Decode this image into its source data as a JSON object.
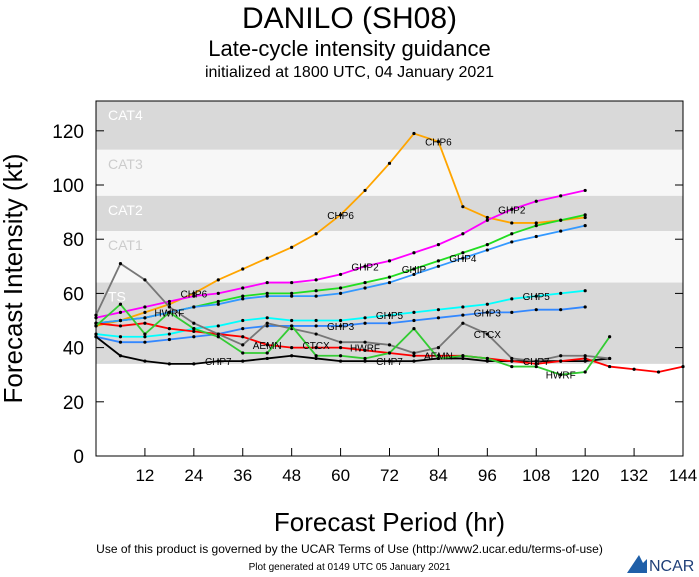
{
  "chart_data": {
    "type": "line",
    "title": "DANILO (SH08)",
    "subtitle": "Late-cycle intensity guidance",
    "initialized": "initialized at 1800 UTC, 04 January 2021",
    "xlabel": "Forecast Period (hr)",
    "ylabel": "Forecast Intensity (kt)",
    "xlim": [
      0,
      144
    ],
    "ylim": [
      0,
      131
    ],
    "xticks": [
      12,
      24,
      36,
      48,
      60,
      72,
      84,
      96,
      108,
      120,
      132,
      144
    ],
    "yticks": [
      0,
      20,
      40,
      60,
      80,
      100,
      120
    ],
    "grid": false,
    "bands": [
      {
        "name": "CAT4",
        "min": 113,
        "max": 131,
        "color": "#d9d9d9"
      },
      {
        "name": "CAT3",
        "min": 96,
        "max": 113,
        "color": "#f7f7f7"
      },
      {
        "name": "CAT2",
        "min": 83,
        "max": 96,
        "color": "#d9d9d9"
      },
      {
        "name": "CAT1",
        "min": 64,
        "max": 83,
        "color": "#f7f7f7"
      },
      {
        "name": "TS",
        "min": 34,
        "max": 64,
        "color": "#d9d9d9"
      }
    ],
    "series": [
      {
        "name": "CHP6",
        "color": "#ffa500",
        "x": [
          0,
          6,
          12,
          18,
          24,
          30,
          36,
          42,
          48,
          54,
          60,
          66,
          72,
          78,
          84,
          90,
          96,
          102,
          108,
          114,
          120
        ],
        "values": [
          48,
          50,
          53,
          56,
          60,
          65,
          69,
          73,
          77,
          82,
          89,
          98,
          108,
          119,
          116,
          92,
          88,
          86,
          86,
          87,
          88
        ]
      },
      {
        "name": "GHP2",
        "color": "#ff00ff",
        "x": [
          0,
          6,
          12,
          18,
          24,
          30,
          36,
          42,
          48,
          54,
          60,
          66,
          72,
          78,
          84,
          90,
          96,
          102,
          108,
          114,
          120
        ],
        "values": [
          51,
          53,
          55,
          57,
          59,
          60,
          62,
          64,
          64,
          65,
          67,
          70,
          72,
          75,
          78,
          82,
          87,
          91,
          94,
          96,
          98
        ]
      },
      {
        "name": "GHIP",
        "color": "#22dd22",
        "x": [
          0,
          6,
          12,
          18,
          24,
          30,
          36,
          42,
          48,
          54,
          60,
          66,
          72,
          78,
          84,
          90,
          96,
          102,
          108,
          114,
          120
        ],
        "values": [
          49,
          50,
          51,
          53,
          55,
          57,
          59,
          60,
          60,
          61,
          62,
          64,
          66,
          69,
          72,
          75,
          78,
          82,
          85,
          87,
          89
        ]
      },
      {
        "name": "GHP4",
        "color": "#3399ff",
        "x": [
          0,
          6,
          12,
          18,
          24,
          30,
          36,
          42,
          48,
          54,
          60,
          66,
          72,
          78,
          84,
          90,
          96,
          102,
          108,
          114,
          120
        ],
        "values": [
          49,
          50,
          51,
          53,
          55,
          56,
          58,
          59,
          59,
          59,
          60,
          62,
          64,
          67,
          70,
          73,
          76,
          79,
          81,
          83,
          85
        ]
      },
      {
        "name": "GHP5",
        "color": "#00ffff",
        "x": [
          0,
          6,
          12,
          18,
          24,
          30,
          36,
          42,
          48,
          54,
          60,
          66,
          72,
          78,
          84,
          90,
          96,
          102,
          108,
          114,
          120
        ],
        "values": [
          45,
          44,
          44,
          45,
          47,
          48,
          50,
          51,
          50,
          50,
          50,
          51,
          52,
          53,
          54,
          55,
          56,
          58,
          59,
          60,
          61
        ]
      },
      {
        "name": "GHP3",
        "color": "#3388ff",
        "x": [
          0,
          6,
          12,
          18,
          24,
          30,
          36,
          42,
          48,
          54,
          60,
          66,
          72,
          78,
          84,
          90,
          96,
          102,
          108,
          114,
          120
        ],
        "values": [
          44,
          42,
          42,
          43,
          44,
          45,
          47,
          48,
          48,
          48,
          48,
          49,
          49,
          50,
          51,
          52,
          53,
          53,
          54,
          54,
          55
        ]
      },
      {
        "name": "CHP7",
        "color": "#000000",
        "x": [
          0,
          6,
          12,
          18,
          24,
          30,
          36,
          42,
          48,
          54,
          60,
          66,
          72,
          78,
          84,
          90,
          96,
          102,
          108,
          114,
          120,
          126
        ],
        "values": [
          44,
          37,
          35,
          34,
          34,
          35,
          35,
          36,
          37,
          36,
          35,
          35,
          35,
          35,
          36,
          36,
          35,
          35,
          35,
          35,
          35,
          36
        ]
      },
      {
        "name": "AEMN",
        "color": "#ff0000",
        "x": [
          0,
          6,
          12,
          18,
          24,
          30,
          36,
          42,
          48,
          54,
          60,
          66,
          72,
          78,
          84,
          90,
          96,
          102,
          108,
          114,
          120,
          126,
          132,
          138,
          144
        ],
        "values": [
          49,
          48,
          49,
          47,
          46,
          45,
          44,
          41,
          40,
          40,
          40,
          39,
          38,
          37,
          37,
          37,
          36,
          35,
          34,
          35,
          36,
          33,
          32,
          31,
          33
        ]
      },
      {
        "name": "CTCX",
        "color": "#777777",
        "x": [
          0,
          6,
          12,
          18,
          24,
          30,
          36,
          42,
          48,
          54,
          60,
          66,
          72,
          78,
          84,
          90,
          96,
          102,
          108,
          114,
          120,
          126
        ],
        "values": [
          52,
          71,
          65,
          55,
          49,
          45,
          41,
          49,
          47,
          45,
          42,
          42,
          41,
          38,
          40,
          49,
          45,
          36,
          35,
          37,
          37,
          36
        ]
      },
      {
        "name": "HWRF",
        "color": "#33cc33",
        "x": [
          0,
          6,
          12,
          18,
          24,
          30,
          36,
          42,
          48,
          54,
          60,
          66,
          72,
          78,
          84,
          90,
          96,
          102,
          108,
          114,
          120,
          126
        ],
        "values": [
          48,
          56,
          45,
          53,
          47,
          44,
          38,
          38,
          48,
          37,
          37,
          36,
          38,
          47,
          36,
          37,
          36,
          33,
          33,
          30,
          31,
          44
        ]
      }
    ]
  },
  "footer": {
    "terms": "Use of this product is governed by the UCAR Terms of Use (http://www2.ucar.edu/terms-of-use)",
    "generated": "Plot generated at 0149 UTC    05 January 2021",
    "logo": "NCAR"
  }
}
